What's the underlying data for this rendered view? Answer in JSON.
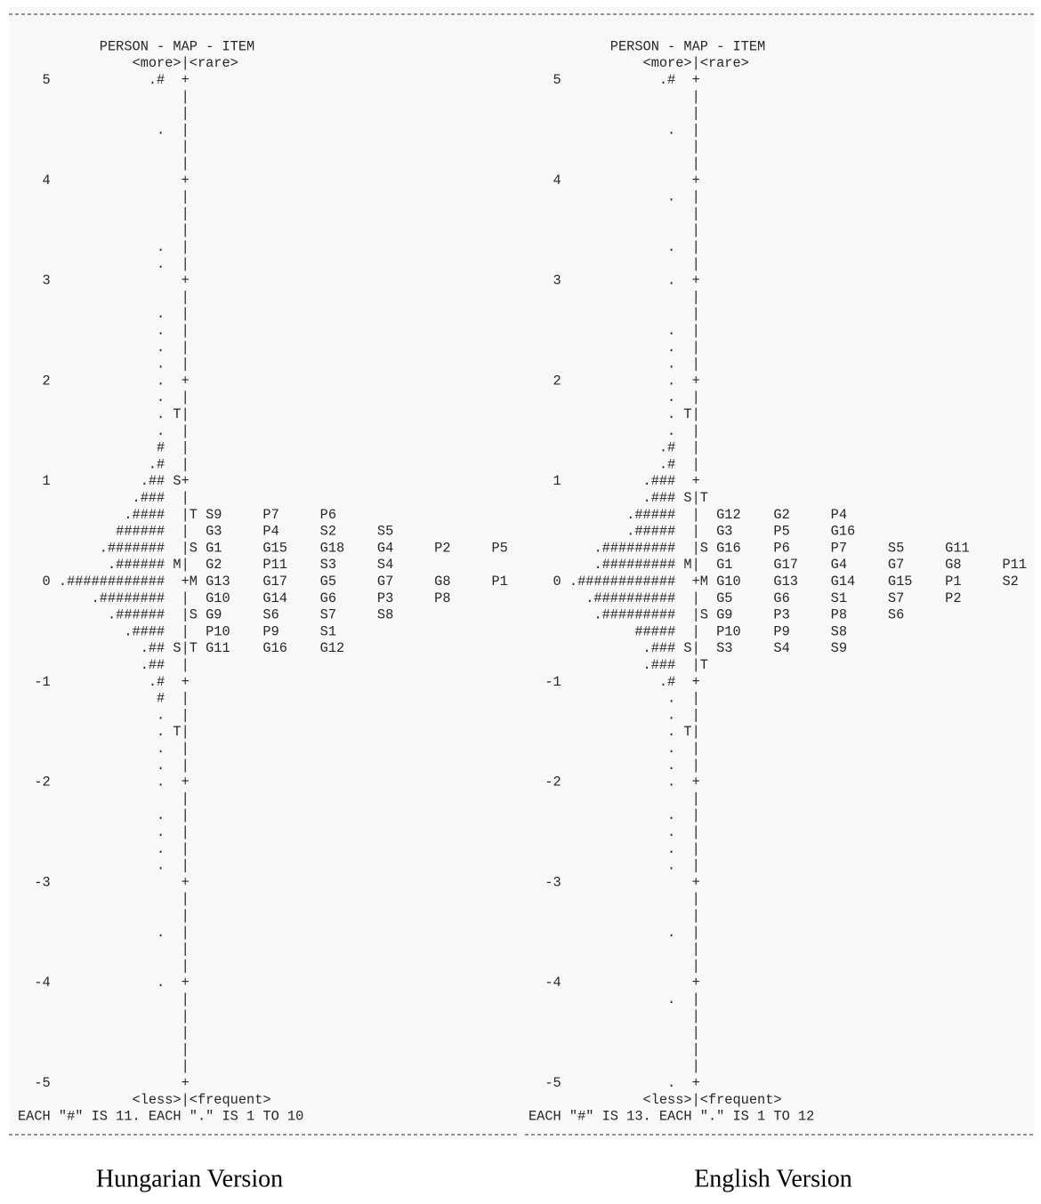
{
  "panels": [
    {
      "header": "PERSON - MAP - ITEM",
      "subheader": "<more>|<rare>",
      "footer": "<less>|<frequent>",
      "note": "EACH \"#\" IS 11. EACH \".\" IS 1 TO 10",
      "caption": "Hungarian Version",
      "rows": [
        {
          "scale": "5",
          "persons": ".#",
          "axis": "+"
        },
        {
          "axis": "|"
        },
        {
          "axis": "|"
        },
        {
          "persons": ".",
          "axis": "|"
        },
        {
          "axis": "|"
        },
        {
          "axis": "|"
        },
        {
          "scale": "4",
          "axis": "+"
        },
        {
          "axis": "|"
        },
        {
          "axis": "|"
        },
        {
          "axis": "|"
        },
        {
          "persons": ".",
          "axis": "|"
        },
        {
          "persons": ".",
          "axis": "|"
        },
        {
          "scale": "3",
          "axis": "+"
        },
        {
          "axis": "|"
        },
        {
          "persons": ".",
          "axis": "|"
        },
        {
          "persons": ".",
          "axis": "|"
        },
        {
          "persons": ".",
          "axis": "|"
        },
        {
          "persons": ".",
          "axis": "|"
        },
        {
          "scale": "2",
          "persons": ".",
          "axis": "+"
        },
        {
          "persons": ".",
          "axis": "|"
        },
        {
          "persons": ".",
          "pm": "T",
          "axis": "|"
        },
        {
          "persons": ".",
          "axis": "|"
        },
        {
          "persons": "#",
          "axis": "|"
        },
        {
          "persons": ".#",
          "axis": "|"
        },
        {
          "scale": "1",
          "persons": ".##",
          "pm": "S",
          "axis": "+"
        },
        {
          "persons": ".###",
          "axis": "|"
        },
        {
          "persons": ".####",
          "axis": "|",
          "im": "T",
          "items": [
            "S9",
            "P7",
            "P6"
          ]
        },
        {
          "persons": "######",
          "axis": "|",
          "items": [
            "G3",
            "P4",
            "S2",
            "S5"
          ]
        },
        {
          "persons": ".#######",
          "axis": "|",
          "im": "S",
          "items": [
            "G1",
            "G15",
            "G18",
            "G4",
            "P2",
            "P5"
          ]
        },
        {
          "persons": ".######",
          "pm": "M",
          "axis": "|",
          "items": [
            "G2",
            "P11",
            "S3",
            "S4"
          ]
        },
        {
          "scale": "0",
          "persons": ".############",
          "axis": "+",
          "im": "M",
          "items": [
            "G13",
            "G17",
            "G5",
            "G7",
            "G8",
            "P1"
          ]
        },
        {
          "persons": ".########",
          "axis": "|",
          "items": [
            "G10",
            "G14",
            "G6",
            "P3",
            "P8"
          ]
        },
        {
          "persons": ".######",
          "axis": "|",
          "im": "S",
          "items": [
            "G9",
            "S6",
            "S7",
            "S8"
          ]
        },
        {
          "persons": ".####",
          "axis": "|",
          "items": [
            "P10",
            "P9",
            "S1"
          ]
        },
        {
          "persons": ".##",
          "pm": "S",
          "axis": "|",
          "im": "T",
          "items": [
            "G11",
            "G16",
            "G12"
          ]
        },
        {
          "persons": ".##",
          "axis": "|"
        },
        {
          "scale": "-1",
          "persons": ".#",
          "axis": "+"
        },
        {
          "persons": "#",
          "axis": "|"
        },
        {
          "persons": ".",
          "axis": "|"
        },
        {
          "persons": ".",
          "pm": "T",
          "axis": "|"
        },
        {
          "persons": ".",
          "axis": "|"
        },
        {
          "persons": ".",
          "axis": "|"
        },
        {
          "scale": "-2",
          "persons": ".",
          "axis": "+"
        },
        {
          "axis": "|"
        },
        {
          "persons": ".",
          "axis": "|"
        },
        {
          "persons": ".",
          "axis": "|"
        },
        {
          "persons": ".",
          "axis": "|"
        },
        {
          "persons": ".",
          "axis": "|"
        },
        {
          "scale": "-3",
          "axis": "+"
        },
        {
          "axis": "|"
        },
        {
          "axis": "|"
        },
        {
          "persons": ".",
          "axis": "|"
        },
        {
          "axis": "|"
        },
        {
          "axis": "|"
        },
        {
          "scale": "-4",
          "persons": ".",
          "axis": "+"
        },
        {
          "axis": "|"
        },
        {
          "axis": "|"
        },
        {
          "axis": "|"
        },
        {
          "axis": "|"
        },
        {
          "axis": "|"
        },
        {
          "scale": "-5",
          "axis": "+"
        }
      ]
    },
    {
      "header": "PERSON - MAP - ITEM",
      "subheader": "<more>|<rare>",
      "footer": "<less>|<frequent>",
      "note": "EACH \"#\" IS 13. EACH \".\" IS 1 TO 12",
      "caption": "English Version",
      "rows": [
        {
          "scale": "5",
          "persons": ".#",
          "axis": "+"
        },
        {
          "axis": "|"
        },
        {
          "axis": "|"
        },
        {
          "persons": ".",
          "axis": "|"
        },
        {
          "axis": "|"
        },
        {
          "axis": "|"
        },
        {
          "scale": "4",
          "axis": "+"
        },
        {
          "persons": ".",
          "axis": "|"
        },
        {
          "axis": "|"
        },
        {
          "axis": "|"
        },
        {
          "persons": ".",
          "axis": "|"
        },
        {
          "axis": "|"
        },
        {
          "scale": "3",
          "persons": ".",
          "axis": "+"
        },
        {
          "axis": "|"
        },
        {
          "axis": "|"
        },
        {
          "persons": ".",
          "axis": "|"
        },
        {
          "persons": ".",
          "axis": "|"
        },
        {
          "persons": ".",
          "axis": "|"
        },
        {
          "scale": "2",
          "persons": ".",
          "axis": "+"
        },
        {
          "persons": ".",
          "axis": "|"
        },
        {
          "persons": ".",
          "pm": "T",
          "axis": "|"
        },
        {
          "persons": ".",
          "axis": "|"
        },
        {
          "persons": ".#",
          "axis": "|"
        },
        {
          "persons": ".#",
          "axis": "|"
        },
        {
          "scale": "1",
          "persons": ".###",
          "axis": "+"
        },
        {
          "persons": ".###",
          "pm": "S",
          "axis": "|",
          "im": "T"
        },
        {
          "persons": ".#####",
          "axis": "|",
          "items": [
            "G12",
            "G2",
            "P4"
          ]
        },
        {
          "persons": ".#####",
          "axis": "|",
          "items": [
            "G3",
            "P5",
            "G16"
          ]
        },
        {
          "persons": ".#########",
          "axis": "|",
          "im": "S",
          "items": [
            "G16",
            "P6",
            "P7",
            "S5",
            "G11"
          ]
        },
        {
          "persons": ".#########",
          "pm": "M",
          "axis": "|",
          "items": [
            "G1",
            "G17",
            "G4",
            "G7",
            "G8",
            "P11"
          ]
        },
        {
          "scale": "0",
          "persons": ".############",
          "axis": "+",
          "im": "M",
          "items": [
            "G10",
            "G13",
            "G14",
            "G15",
            "P1",
            "S2"
          ]
        },
        {
          "persons": ".##########",
          "axis": "|",
          "items": [
            "G5",
            "G6",
            "S1",
            "S7",
            "P2"
          ]
        },
        {
          "persons": ".#########",
          "axis": "|",
          "im": "S",
          "items": [
            "G9",
            "P3",
            "P8",
            "S6"
          ]
        },
        {
          "persons": "#####",
          "axis": "|",
          "items": [
            "P10",
            "P9",
            "S8"
          ]
        },
        {
          "persons": ".###",
          "pm": "S",
          "axis": "|",
          "items": [
            "S3",
            "S4",
            "S9"
          ]
        },
        {
          "persons": ".###",
          "axis": "|",
          "im": "T"
        },
        {
          "scale": "-1",
          "persons": ".#",
          "axis": "+"
        },
        {
          "persons": ".",
          "axis": "|"
        },
        {
          "persons": ".",
          "axis": "|"
        },
        {
          "persons": ".",
          "pm": "T",
          "axis": "|"
        },
        {
          "persons": ".",
          "axis": "|"
        },
        {
          "persons": ".",
          "axis": "|"
        },
        {
          "scale": "-2",
          "persons": ".",
          "axis": "+"
        },
        {
          "axis": "|"
        },
        {
          "persons": ".",
          "axis": "|"
        },
        {
          "persons": ".",
          "axis": "|"
        },
        {
          "persons": ".",
          "axis": "|"
        },
        {
          "persons": ".",
          "axis": "|"
        },
        {
          "scale": "-3",
          "axis": "+"
        },
        {
          "axis": "|"
        },
        {
          "axis": "|"
        },
        {
          "persons": ".",
          "axis": "|"
        },
        {
          "axis": "|"
        },
        {
          "axis": "|"
        },
        {
          "scale": "-4",
          "axis": "+"
        },
        {
          "persons": ".",
          "axis": "|"
        },
        {
          "axis": "|"
        },
        {
          "axis": "|"
        },
        {
          "axis": "|"
        },
        {
          "axis": "|"
        },
        {
          "scale": "-5",
          "persons": ".",
          "axis": "+"
        }
      ]
    }
  ]
}
